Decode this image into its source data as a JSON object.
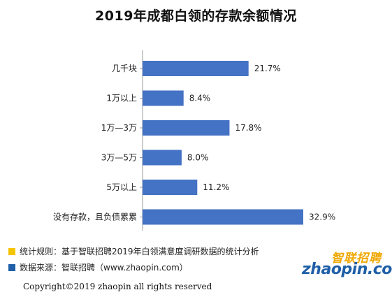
{
  "chart_data": {
    "type": "bar",
    "orientation": "horizontal",
    "title": "2019年成都白领的存款余额情况",
    "categories": [
      "几千块",
      "1万以上",
      "1万—3万",
      "3万—5万",
      "5万以上",
      "没有存款，且负债累累"
    ],
    "values": [
      21.7,
      8.4,
      17.8,
      8.0,
      11.2,
      32.9
    ],
    "value_labels": [
      "21.7%",
      "8.4%",
      "17.8%",
      "8.0%",
      "11.2%",
      "32.9%"
    ],
    "unit": "%",
    "xlim": [
      0,
      35
    ],
    "grid": false,
    "bar_color": "#4472c4"
  },
  "notes": {
    "rule": "统计规则：基于智联招聘2019年白领满意度调研数据的统计分析",
    "source": "数据来源：智联招聘（www.zhaopin.com）",
    "rule_color": "#f5c400",
    "source_color": "#1f5fa8"
  },
  "copyright": "Copyright©2019 zhaopin all rights reserved",
  "logo": {
    "cn": "智联招聘",
    "en": "zhaopin.com"
  }
}
